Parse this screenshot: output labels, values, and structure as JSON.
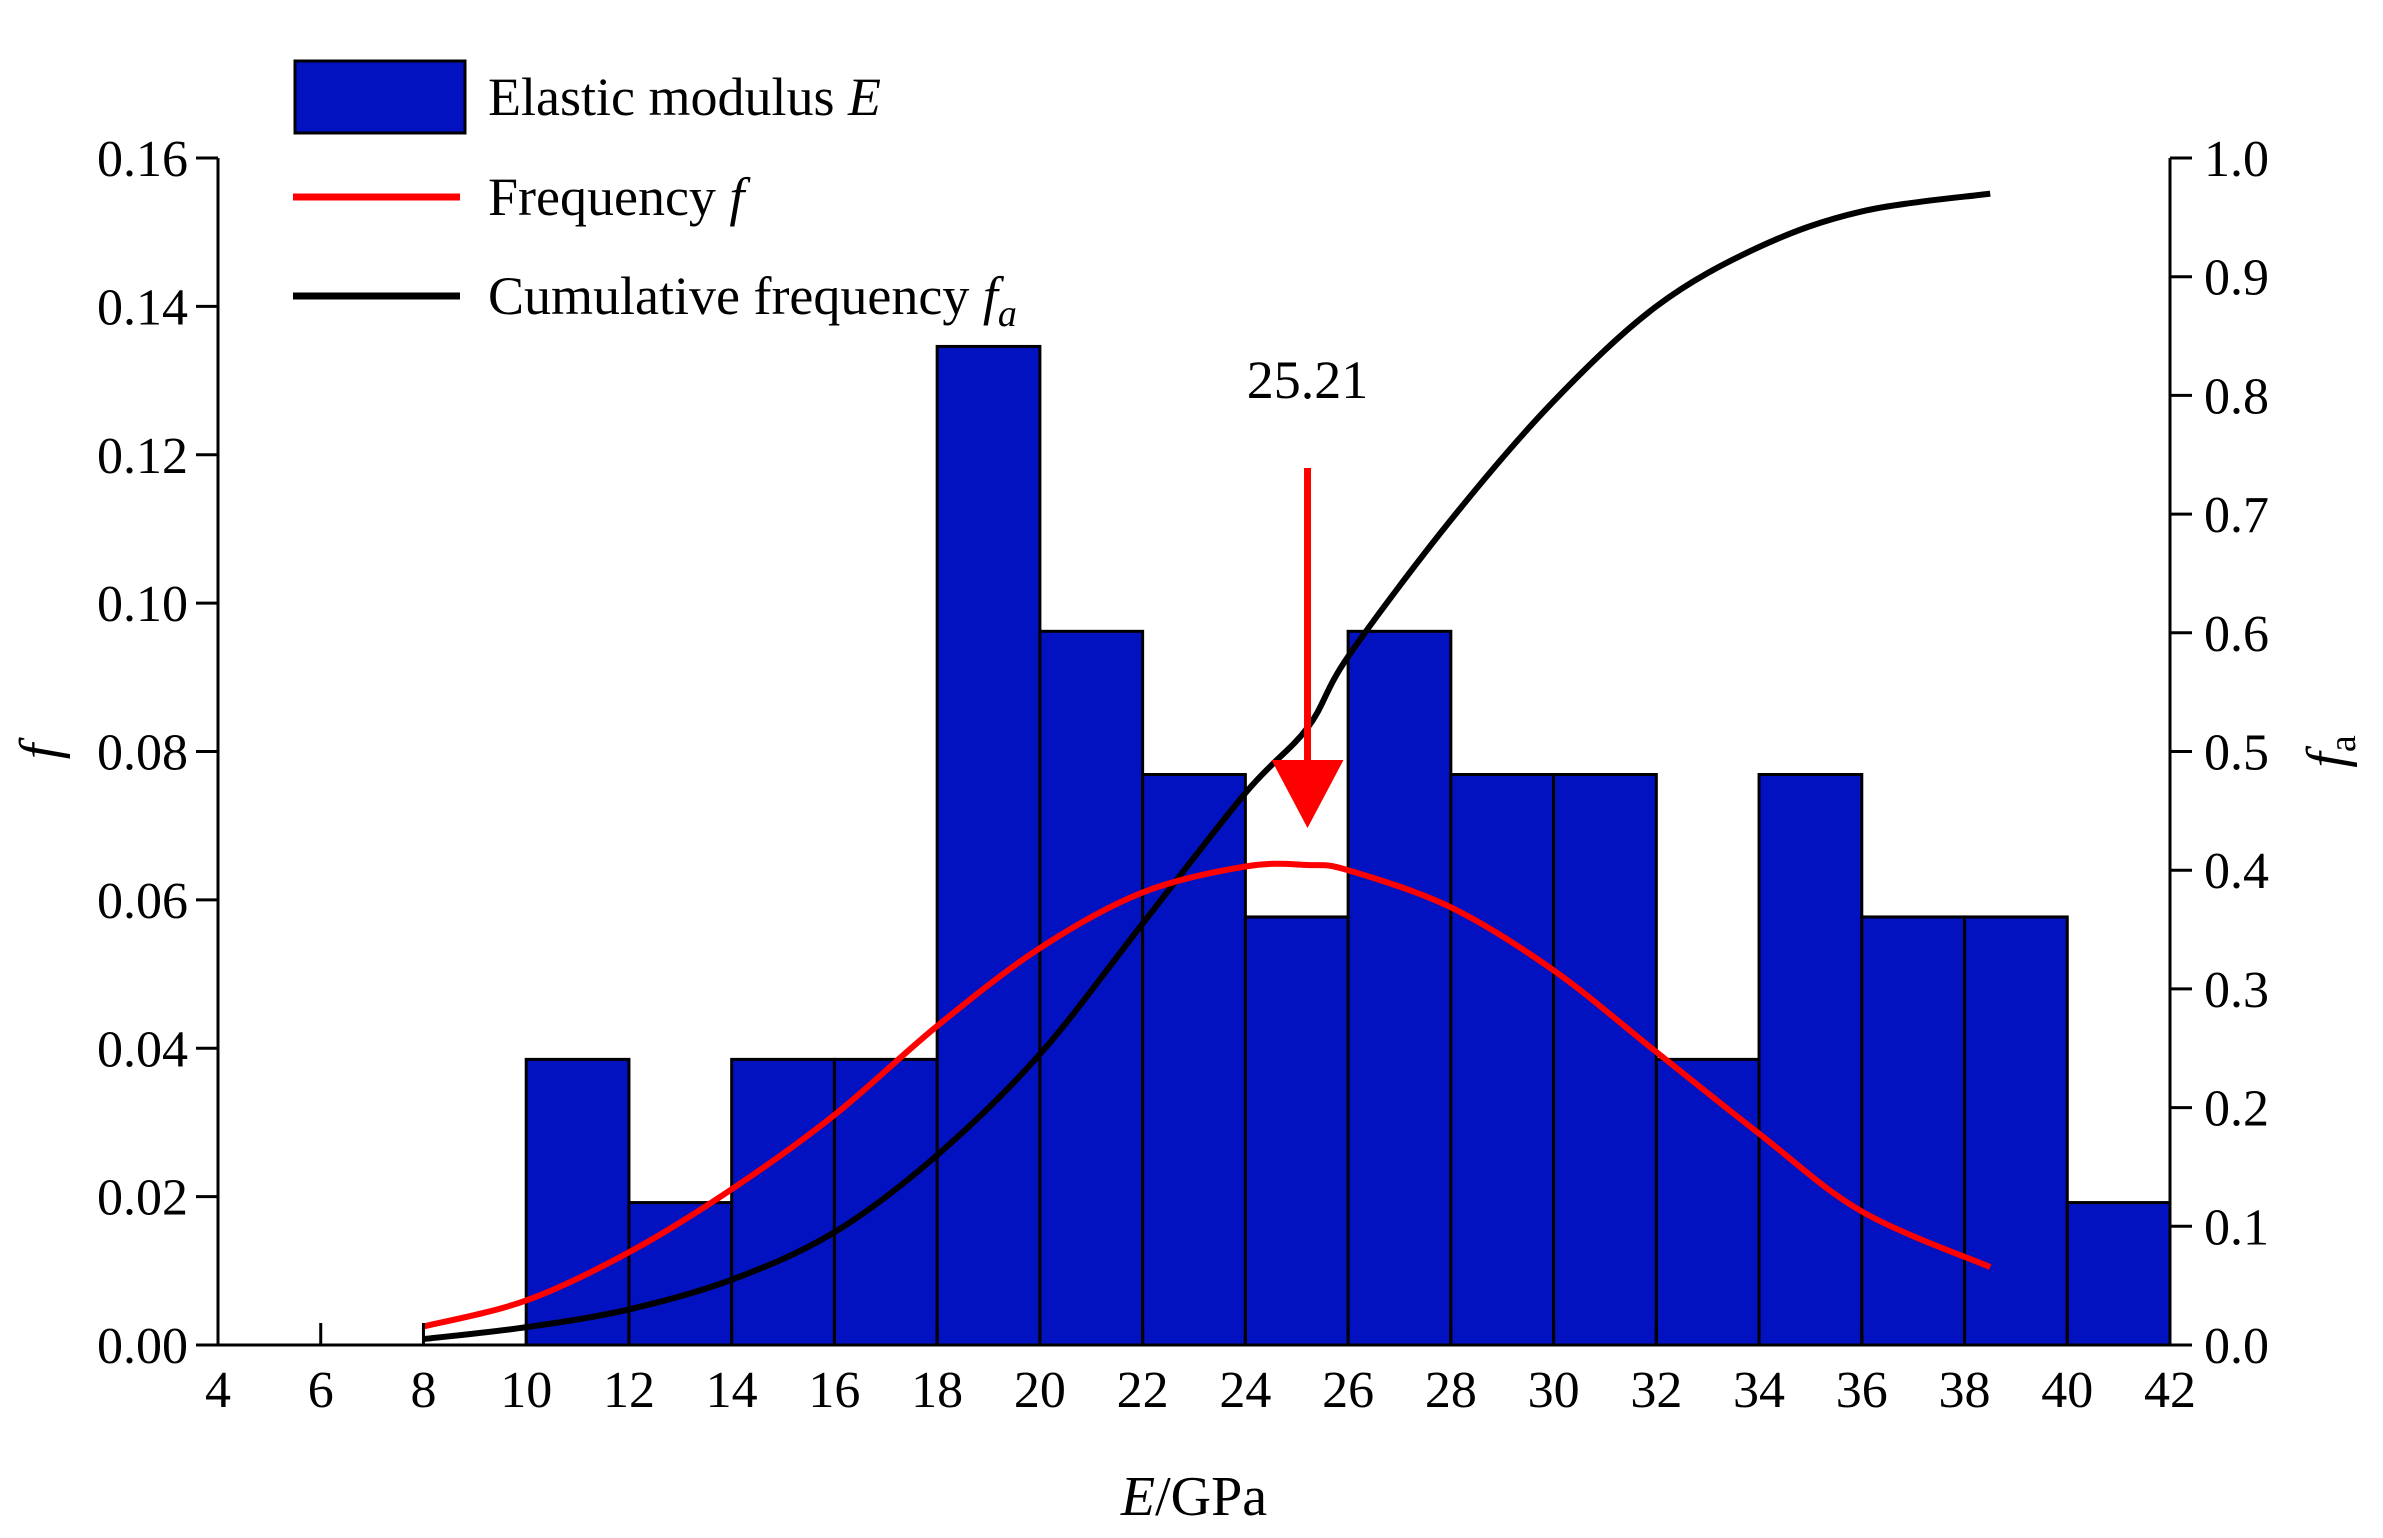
{
  "chart_data": {
    "type": "bar",
    "title": "",
    "xlabel": {
      "italic": "E",
      "rest": "/GPa"
    },
    "ylabel": "f",
    "y2label": {
      "main": "f",
      "sub": "a"
    },
    "xlim": [
      4,
      42
    ],
    "ylim": [
      0,
      0.16
    ],
    "y2lim": [
      0,
      1.0
    ],
    "xticks": [
      "4",
      "6",
      "8",
      "10",
      "12",
      "14",
      "16",
      "18",
      "20",
      "22",
      "24",
      "26",
      "28",
      "30",
      "32",
      "34",
      "36",
      "38",
      "40",
      "42"
    ],
    "yticks": [
      "0.00",
      "0.02",
      "0.04",
      "0.06",
      "0.08",
      "0.10",
      "0.12",
      "0.14",
      "0.16"
    ],
    "y2ticks": [
      "0.0",
      "0.1",
      "0.2",
      "0.3",
      "0.4",
      "0.5",
      "0.6",
      "0.7",
      "0.8",
      "0.9",
      "1.0"
    ],
    "bins": [
      {
        "x0": 10,
        "x1": 12,
        "value": 0.0385
      },
      {
        "x0": 12,
        "x1": 14,
        "value": 0.0192
      },
      {
        "x0": 14,
        "x1": 16,
        "value": 0.0385
      },
      {
        "x0": 16,
        "x1": 18,
        "value": 0.0385
      },
      {
        "x0": 18,
        "x1": 20,
        "value": 0.1346
      },
      {
        "x0": 20,
        "x1": 22,
        "value": 0.0962
      },
      {
        "x0": 22,
        "x1": 24,
        "value": 0.0769
      },
      {
        "x0": 24,
        "x1": 26,
        "value": 0.0577
      },
      {
        "x0": 26,
        "x1": 28,
        "value": 0.0962
      },
      {
        "x0": 28,
        "x1": 30,
        "value": 0.0769
      },
      {
        "x0": 30,
        "x1": 32,
        "value": 0.0769
      },
      {
        "x0": 32,
        "x1": 34,
        "value": 0.0385
      },
      {
        "x0": 34,
        "x1": 36,
        "value": 0.0769
      },
      {
        "x0": 36,
        "x1": 38,
        "value": 0.0577
      },
      {
        "x0": 38,
        "x1": 40,
        "value": 0.0577
      },
      {
        "x0": 40,
        "x1": 42,
        "value": 0.0192
      }
    ],
    "frequency_curve": {
      "name": "Frequency f",
      "axis": "left",
      "x": [
        8,
        10,
        12,
        14,
        16,
        18,
        20,
        22,
        24,
        25.21,
        26,
        28,
        30,
        32,
        34,
        36,
        38.5
      ],
      "y": [
        0.0025,
        0.006,
        0.0125,
        0.021,
        0.031,
        0.043,
        0.0535,
        0.061,
        0.0645,
        0.0647,
        0.064,
        0.059,
        0.0505,
        0.0395,
        0.0285,
        0.018,
        0.0105
      ]
    },
    "cumulative_curve": {
      "name": "Cumulative frequency fa",
      "axis": "right",
      "x": [
        8,
        10,
        12,
        14,
        16,
        18,
        20,
        22,
        24,
        25.21,
        26,
        28,
        30,
        32,
        34,
        36,
        38.5
      ],
      "y": [
        0.005,
        0.015,
        0.03,
        0.055,
        0.095,
        0.16,
        0.245,
        0.355,
        0.465,
        0.52,
        0.58,
        0.695,
        0.795,
        0.875,
        0.925,
        0.955,
        0.97
      ]
    },
    "annotation": {
      "text": "25.21",
      "x": 25.21,
      "color": "#ff0000"
    },
    "legend": {
      "position": "top-left",
      "items": [
        {
          "label": "Elastic modulus ",
          "label_italic": "E",
          "label_sub": "",
          "kind": "bar",
          "color": "#0212C0"
        },
        {
          "label": "Frequency ",
          "label_italic": "f",
          "label_sub": "",
          "kind": "line",
          "color": "#ff0000"
        },
        {
          "label": "Cumulative frequency ",
          "label_italic": "f",
          "label_sub": "a",
          "kind": "line",
          "color": "#000000"
        }
      ]
    },
    "colors": {
      "bar_fill": "#0212C0",
      "bar_stroke": "#000000",
      "frequency": "#ff0000",
      "cumulative": "#000000"
    }
  }
}
